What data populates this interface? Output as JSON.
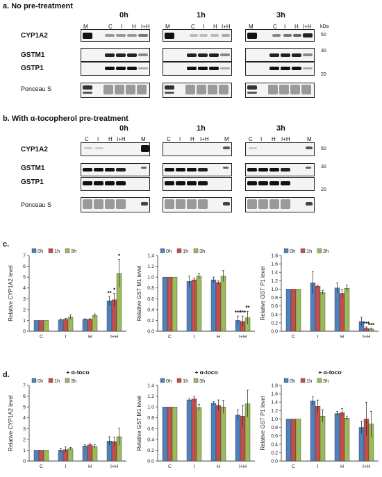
{
  "panel_a": {
    "title": "a. No pre-treatment",
    "times": [
      "0h",
      "1h",
      "3h"
    ],
    "lanes_0h": [
      "M",
      "C",
      "I",
      "H",
      "I+H"
    ],
    "lanes_1h": [
      "M",
      "C",
      "I",
      "H",
      "I+H"
    ],
    "lanes_3h": [
      "M",
      "C",
      "I",
      "H",
      "I+H"
    ],
    "rows": [
      "CYP1A2",
      "GSTM1",
      "GSTP1",
      "Ponceau S"
    ],
    "kda_label": "kDa",
    "kda_marks": [
      "50",
      "30",
      "20"
    ]
  },
  "panel_b": {
    "title": "b. With α-tocopherol pre-treatment",
    "times": [
      "0h",
      "1h",
      "3h"
    ],
    "lanes_0h": [
      "C",
      "I",
      "H",
      "I+H",
      "M"
    ],
    "lanes_1h": [
      "C",
      "I",
      "H",
      "I+H",
      "M"
    ],
    "lanes_3h": [
      "C",
      "I",
      "H",
      "I+H",
      "M"
    ],
    "rows": [
      "CYP1A2",
      "GSTM1",
      "GSTP1",
      "Ponceau S"
    ],
    "kda_marks": [
      "50",
      "30",
      "20"
    ]
  },
  "panel_c": {
    "label": "c."
  },
  "panel_d": {
    "label": "d."
  },
  "chart_data": [
    {
      "type": "bar",
      "panel": "c",
      "title": "",
      "categories": [
        "C",
        "I",
        "H",
        "I+H"
      ],
      "series": [
        {
          "name": "0h",
          "values": [
            1.0,
            1.05,
            1.1,
            2.8
          ],
          "errors": [
            0.0,
            0.08,
            0.05,
            0.4
          ]
        },
        {
          "name": "1h",
          "values": [
            1.0,
            1.1,
            1.1,
            2.9
          ],
          "errors": [
            0.0,
            0.1,
            0.05,
            0.6
          ]
        },
        {
          "name": "3h",
          "values": [
            1.0,
            1.3,
            1.45,
            5.35
          ],
          "errors": [
            0.0,
            0.2,
            0.15,
            1.3
          ]
        }
      ],
      "annotations": [
        {
          "category": "I+H",
          "series": "0h",
          "text": "**"
        },
        {
          "category": "I+H",
          "series": "1h",
          "text": "*"
        },
        {
          "category": "I+H",
          "series": "3h",
          "text": "*"
        }
      ],
      "ylabel": "Relative CYP1A2 level",
      "ylim": [
        0,
        7
      ],
      "yticks": [
        "0",
        "1",
        "2",
        "3",
        "4",
        "5",
        "6",
        "7"
      ],
      "legend_position": "top-left"
    },
    {
      "type": "bar",
      "panel": "c",
      "title": "",
      "categories": [
        "C",
        "I",
        "H",
        "I+H"
      ],
      "series": [
        {
          "name": "0h",
          "values": [
            1.0,
            0.92,
            0.95,
            0.2
          ],
          "errors": [
            0.0,
            0.1,
            0.05,
            0.08
          ]
        },
        {
          "name": "1h",
          "values": [
            1.0,
            0.95,
            0.9,
            0.18
          ],
          "errors": [
            0.0,
            0.03,
            0.03,
            0.1
          ]
        },
        {
          "name": "3h",
          "values": [
            1.0,
            1.02,
            1.02,
            0.25
          ],
          "errors": [
            0.0,
            0.05,
            0.1,
            0.12
          ]
        }
      ],
      "annotations": [
        {
          "category": "I+H",
          "series": "0h",
          "text": "***"
        },
        {
          "category": "I+H",
          "series": "1h",
          "text": "***"
        },
        {
          "category": "I+H",
          "series": "3h",
          "text": "**"
        }
      ],
      "ylabel": "Relative GST M1 level",
      "ylim": [
        0,
        1.4
      ],
      "yticks": [
        "0.0",
        "0.2",
        "0.4",
        "0.6",
        "0.8",
        "1.0",
        "1.2",
        "1.4"
      ],
      "legend_position": "top-left"
    },
    {
      "type": "bar",
      "panel": "c",
      "title": "",
      "categories": [
        "C",
        "I",
        "H",
        "I+H"
      ],
      "series": [
        {
          "name": "0h",
          "values": [
            1.0,
            1.15,
            1.03,
            0.23
          ],
          "errors": [
            0.0,
            0.27,
            0.12,
            0.1
          ]
        },
        {
          "name": "1h",
          "values": [
            1.0,
            1.07,
            0.9,
            0.07
          ],
          "errors": [
            0.0,
            0.03,
            0.1,
            0.03
          ]
        },
        {
          "name": "3h",
          "values": [
            1.0,
            0.92,
            1.02,
            0.05
          ],
          "errors": [
            0.0,
            0.05,
            0.08,
            0.02
          ]
        }
      ],
      "annotations": [
        {
          "category": "I+H",
          "series": "1h",
          "text": "***"
        },
        {
          "category": "I+H",
          "series": "3h",
          "text": "***"
        }
      ],
      "ylabel": "Relative GST P1 level",
      "ylim": [
        0,
        1.8
      ],
      "yticks": [
        "0.0",
        "0.2",
        "0.4",
        "0.6",
        "0.8",
        "1.0",
        "1.2",
        "1.4",
        "1.6",
        "1.8"
      ],
      "legend_position": "top-left"
    },
    {
      "type": "bar",
      "panel": "d",
      "title": "+ α-toco",
      "categories": [
        "C",
        "I",
        "H",
        "I+H"
      ],
      "series": [
        {
          "name": "0h",
          "values": [
            1.0,
            1.0,
            1.4,
            1.85
          ],
          "errors": [
            0.0,
            0.2,
            0.1,
            0.4
          ]
        },
        {
          "name": "1h",
          "values": [
            1.0,
            1.05,
            1.5,
            1.8
          ],
          "errors": [
            0.0,
            0.25,
            0.1,
            0.4
          ]
        },
        {
          "name": "3h",
          "values": [
            1.0,
            1.15,
            1.35,
            2.25
          ],
          "errors": [
            0.0,
            0.1,
            0.15,
            0.8
          ]
        }
      ],
      "annotations": [],
      "ylabel": "Relative CYP1A2 level",
      "ylim": [
        0,
        7
      ],
      "yticks": [
        "0",
        "1",
        "2",
        "3",
        "4",
        "5",
        "6",
        "7"
      ],
      "legend_position": "top-left"
    },
    {
      "type": "bar",
      "panel": "d",
      "title": "+ α-toco",
      "categories": [
        "C",
        "I",
        "H",
        "I+H"
      ],
      "series": [
        {
          "name": "0h",
          "values": [
            1.0,
            1.13,
            1.07,
            0.85
          ],
          "errors": [
            0.0,
            0.02,
            0.03,
            0.1
          ]
        },
        {
          "name": "1h",
          "values": [
            1.0,
            1.15,
            1.03,
            0.83
          ],
          "errors": [
            0.0,
            0.05,
            0.1,
            0.2
          ]
        },
        {
          "name": "3h",
          "values": [
            1.0,
            0.99,
            1.0,
            1.06
          ],
          "errors": [
            0.0,
            0.06,
            0.12,
            0.25
          ]
        }
      ],
      "annotations": [],
      "ylabel": "Relative GST M1 level",
      "ylim": [
        0,
        1.4
      ],
      "yticks": [
        "0.0",
        "0.2",
        "0.4",
        "0.6",
        "0.8",
        "1.0",
        "1.2",
        "1.4"
      ],
      "legend_position": "top-left"
    },
    {
      "type": "bar",
      "panel": "d",
      "title": "+ α-toco",
      "categories": [
        "C",
        "I",
        "H",
        "I+H"
      ],
      "series": [
        {
          "name": "0h",
          "values": [
            1.0,
            1.43,
            1.13,
            0.8
          ],
          "errors": [
            0.0,
            0.1,
            0.05,
            0.15
          ]
        },
        {
          "name": "1h",
          "values": [
            1.0,
            1.3,
            1.15,
            1.0
          ],
          "errors": [
            0.0,
            0.15,
            0.1,
            0.4
          ]
        },
        {
          "name": "3h",
          "values": [
            1.0,
            1.07,
            1.02,
            0.88
          ],
          "errors": [
            0.0,
            0.15,
            0.05,
            0.3
          ]
        }
      ],
      "annotations": [],
      "ylabel": "Relative GST P1 level",
      "ylim": [
        0,
        1.8
      ],
      "yticks": [
        "0.0",
        "0.2",
        "0.4",
        "0.6",
        "0.8",
        "1.0",
        "1.2",
        "1.4",
        "1.6",
        "1.8"
      ],
      "legend_position": "top-left"
    }
  ],
  "colors": {
    "0h": "#4f81bd",
    "1h": "#c0504d",
    "3h": "#9bbb59"
  }
}
